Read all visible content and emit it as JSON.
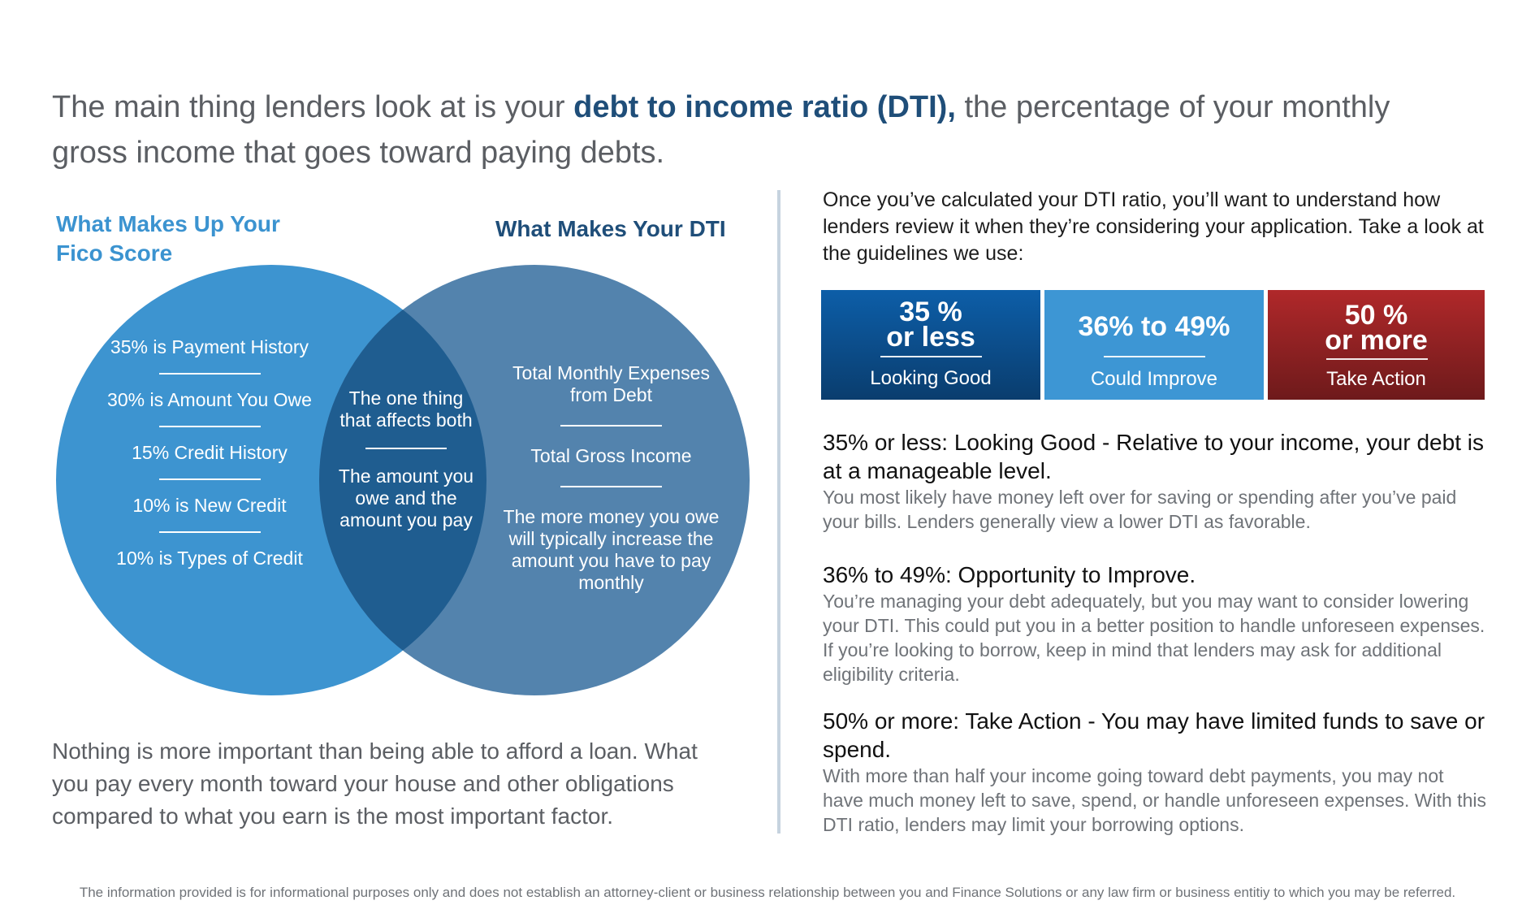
{
  "headline": {
    "before": "The main thing lenders look at is your ",
    "highlight": "debt to income ratio (DTI),",
    "after": " the percentage of your monthly gross income that goes toward paying debts."
  },
  "venn": {
    "left_title": "What Makes Up Your Fico Score",
    "right_title": "What Makes Your DTI",
    "left_items": [
      "35% is Payment History",
      "30% is Amount You Owe",
      "15% Credit History",
      "10% is New Credit",
      "10% is Types of Credit"
    ],
    "middle_items": [
      "The one thing that affects both",
      "The amount you owe and the amount you pay"
    ],
    "right_items": [
      "Total Monthly Expenses from Debt",
      "Total Gross Income",
      "The more money you owe will typically increase the amount you have to pay monthly"
    ],
    "colors": {
      "left": "#3d94d0",
      "right": "#5383ad",
      "overlap": "#1f5d90"
    }
  },
  "bottom_note": "Nothing is more important than being able to afford a loan. What you pay every month toward your house and other obligations compared to what you earn is the most important factor.",
  "intro": "Once you’ve calculated your DTI ratio, you’ll want to understand how lenders review it when they’re considering your application. Take a look at the guidelines we use:",
  "tiles": [
    {
      "range_line1": "35 %",
      "range_line2": "or less",
      "label": "Looking Good",
      "color": "#0a4f91"
    },
    {
      "range_line1": "36% to 49%",
      "range_line2": "",
      "label": "Could Improve",
      "color": "#3d96d4"
    },
    {
      "range_line1": "50 %",
      "range_line2": "or more",
      "label": "Take Action",
      "color": "#9e2527"
    }
  ],
  "guidelines": [
    {
      "heading": "35% or less: Looking Good - Relative to your income, your debt is at a manageable level.",
      "body": "You most likely have money left over for saving or spending after you’ve paid your bills. Lenders generally view a lower DTI as favorable."
    },
    {
      "heading": "36% to 49%: Opportunity to Improve.",
      "body": "You’re managing your debt adequately, but you may want to consider lowering your DTI. This could put you in a better position to handle unforeseen expenses. If you’re looking to borrow, keep in mind that lenders may ask for additional eligibility criteria."
    },
    {
      "heading": "50% or more: Take Action - You may have limited funds to save or spend.",
      "body": "With more than half your income going toward debt payments, you may not have much money left to save, spend, or handle unforeseen expenses. With this DTI ratio, lenders may limit your borrowing options."
    }
  ],
  "disclaimer": "The information provided is for informational purposes only and does not establish an attorney-client or business relationship between you and Finance Solutions or any law firm or business entitiy to which you may be referred."
}
